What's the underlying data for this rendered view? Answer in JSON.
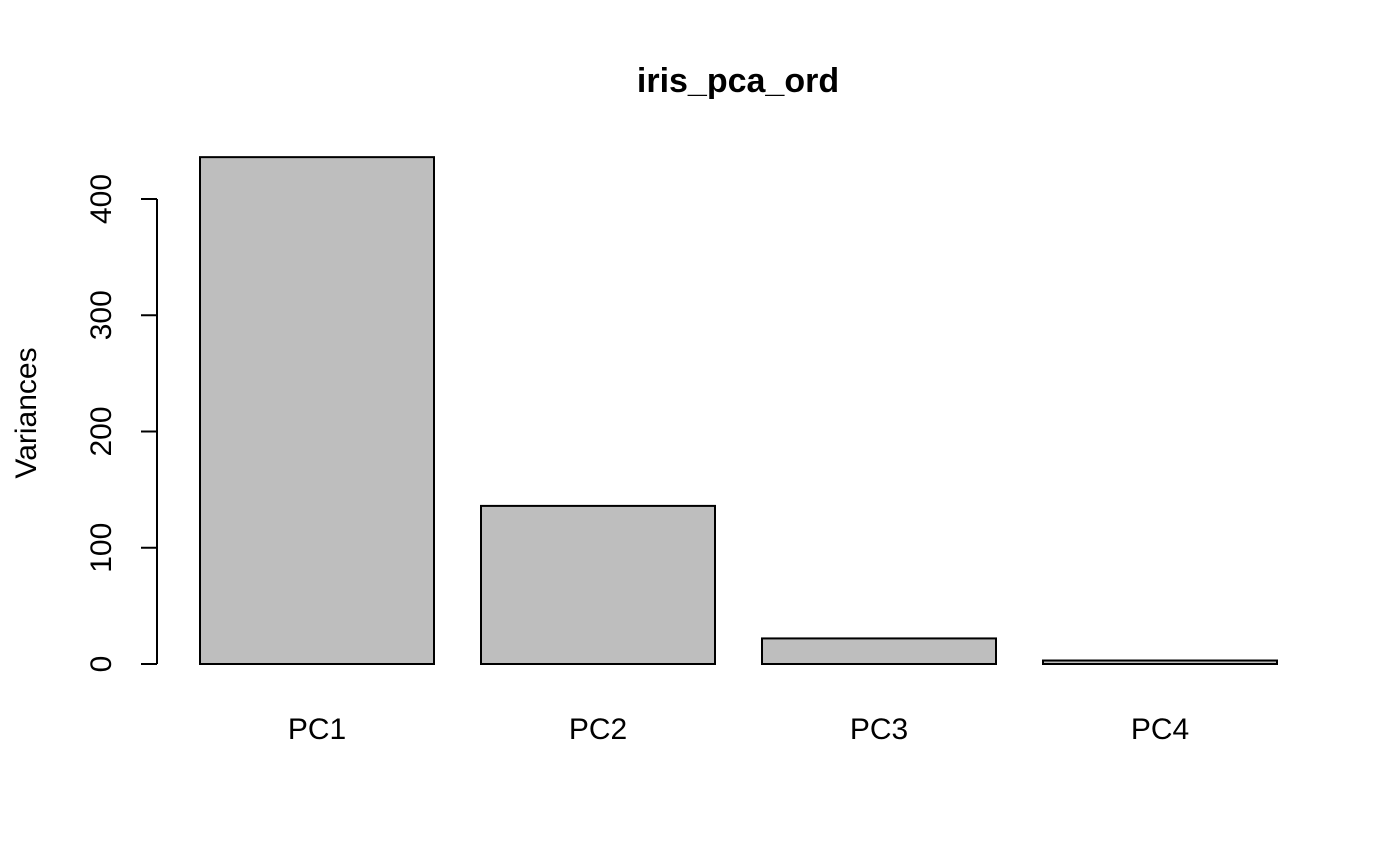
{
  "chart_data": {
    "type": "bar",
    "title": "iris_pca_ord",
    "xlabel": "",
    "ylabel": "Variances",
    "categories": [
      "PC1",
      "PC2",
      "PC3",
      "PC4"
    ],
    "values": [
      436,
      136,
      22,
      3
    ],
    "ylim": [
      0,
      400
    ],
    "yticks": [
      "0",
      "100",
      "200",
      "300",
      "400"
    ],
    "bar_color": "#bebebe",
    "bar_border_color": "#000000",
    "grid": false,
    "legend": "none"
  }
}
